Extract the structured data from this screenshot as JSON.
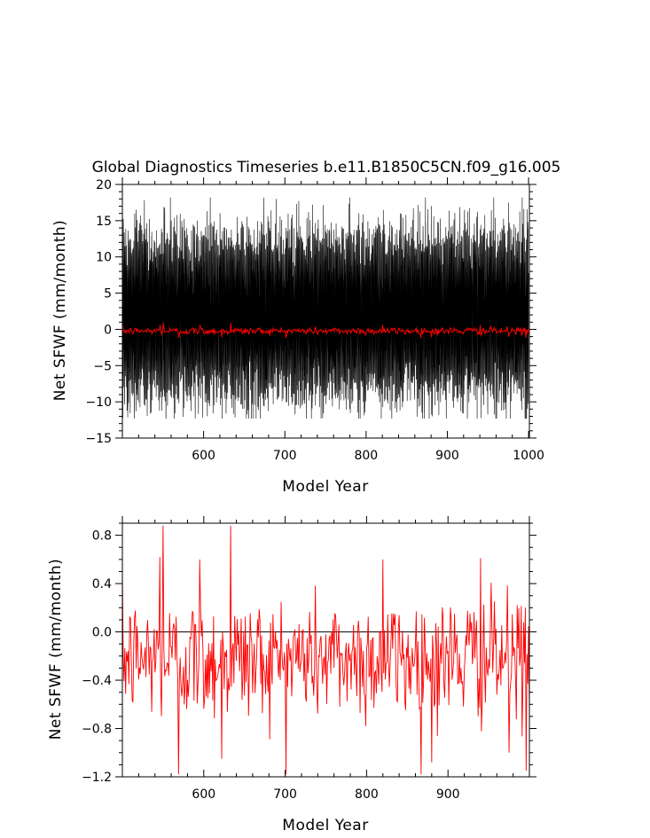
{
  "chart_data": [
    {
      "type": "line",
      "title": "Global Diagnostics Timeseries b.e11.B1850C5CN.f09_g16.005",
      "xlabel": "Model Year",
      "ylabel": "Net SFWF (mm/month)",
      "xlim": [
        500,
        1001
      ],
      "ylim": [
        -15,
        20
      ],
      "x_ticks": [
        600,
        700,
        800,
        900,
        1000
      ],
      "y_ticks": [
        -15,
        -10,
        -5,
        0,
        5,
        10,
        15,
        20
      ],
      "series": [
        {
          "color": "#000000",
          "resolution": "monthly",
          "values_summary": {
            "amplitude_range": [
              -12.3,
              18.2
            ],
            "typical_range": [
              -9,
              13
            ]
          }
        },
        {
          "color": "#ff0000",
          "resolution": "annual mean",
          "values_summary": {
            "range": [
              -1.2,
              0.9
            ]
          }
        }
      ]
    },
    {
      "type": "line",
      "xlabel": "Model Year",
      "ylabel": "Net SFWF (mm/month)",
      "xlim": [
        500,
        1000
      ],
      "ylim": [
        -1.2,
        0.9
      ],
      "x_ticks": [
        600,
        700,
        800,
        900
      ],
      "y_ticks": [
        -1.2,
        -0.8,
        -0.4,
        0.0,
        0.4,
        0.8
      ],
      "y_tick_labels": [
        "−1.2",
        "−0.8",
        "−0.4",
        "0.0",
        "0.4",
        "0.8"
      ],
      "reference_line": 0,
      "series": [
        {
          "color": "#ff0000",
          "resolution": "annual mean",
          "anchor_points": [
            {
              "x": 501,
              "y": -0.2
            },
            {
              "x": 546,
              "y": 0.62
            },
            {
              "x": 550,
              "y": 0.9
            },
            {
              "x": 569,
              "y": -1.2
            },
            {
              "x": 595,
              "y": 0.6
            },
            {
              "x": 622,
              "y": -1.05
            },
            {
              "x": 633,
              "y": 0.9
            },
            {
              "x": 820,
              "y": 0.6
            },
            {
              "x": 880,
              "y": -1.08
            },
            {
              "x": 940,
              "y": 0.61
            },
            {
              "x": 975,
              "y": -1.0
            },
            {
              "x": 996,
              "y": -1.15
            }
          ]
        }
      ]
    }
  ]
}
